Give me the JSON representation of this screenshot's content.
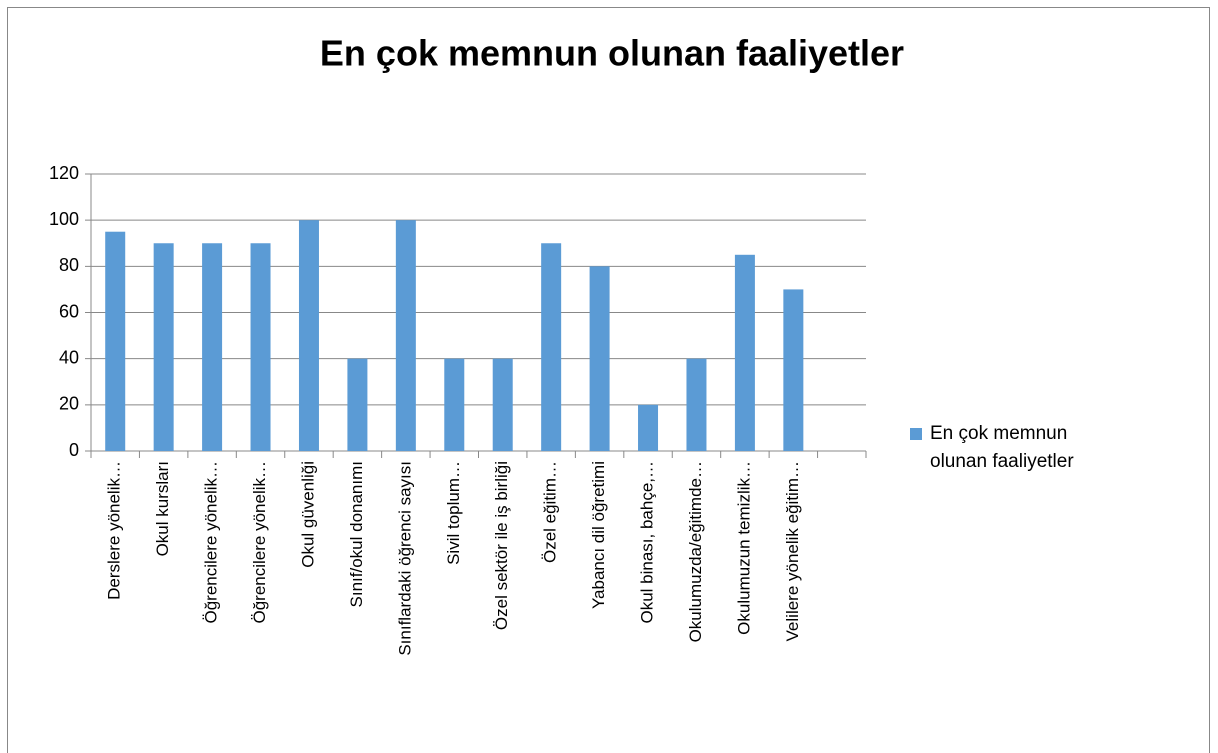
{
  "chart_data": {
    "type": "bar",
    "title": "En çok memnun olunan faaliyetler",
    "categories": [
      "Derslere yönelik…",
      "Okul kursları",
      "Öğrencilere yönelik…",
      "Öğrencilere yönelik…",
      "Okul güvenliği",
      "Sınıf/okul donanımı",
      "Sınıflardaki öğrenci sayısı",
      "Sivil toplum…",
      "Özel sektör ile iş birliği",
      "Özel eğitim…",
      "Yabancı dil öğretimi",
      "Okul binası, bahçe,…",
      "Okulumuzda/eğitimde…",
      "Okulumuzun temizlik…",
      "Velilere yönelik eğitim…",
      null
    ],
    "series": [
      {
        "name": "En çok memnun olunan faaliyetler",
        "color": "#5b9bd5",
        "values": [
          95,
          90,
          90,
          90,
          100,
          40,
          100,
          40,
          40,
          90,
          80,
          20,
          40,
          85,
          70,
          null
        ]
      }
    ],
    "ylim": [
      0,
      120
    ],
    "yticks": [
      0,
      20,
      40,
      60,
      80,
      100,
      120
    ],
    "grid": true,
    "legend": "right"
  }
}
